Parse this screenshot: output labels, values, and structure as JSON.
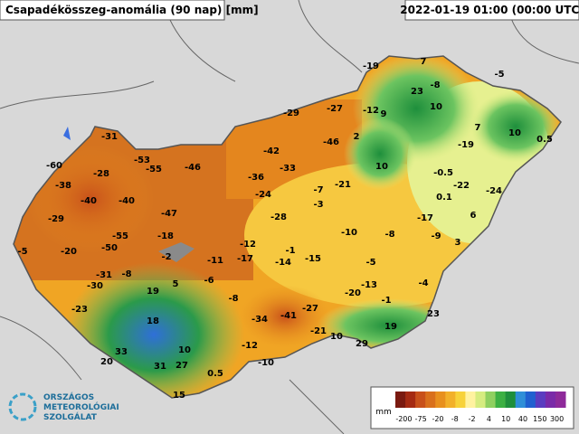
{
  "header": {
    "title": "Csapadékösszeg-anomália (90 nap) [mm]",
    "timestamp": "2022-01-19 01:00 (00:00 UTC)"
  },
  "logo": {
    "lines": [
      "ORSZÁGOS",
      "METEOROLÓGIAI",
      "SZOLGÁLAT"
    ]
  },
  "stations": {
    "values": [
      -19,
      7,
      -5,
      23,
      -8,
      10,
      -29,
      -27,
      -12,
      9,
      -31,
      -46,
      2,
      10,
      0.5,
      -19,
      7,
      -42,
      -53,
      -55,
      -46,
      -60,
      -28,
      -33,
      -36,
      10,
      -0.5,
      -38,
      -24,
      -7,
      -21,
      -22,
      -24,
      -40,
      -40,
      -3,
      0.1,
      -29,
      -47,
      -28,
      -17,
      6,
      -55,
      -18,
      -12,
      -1,
      -10,
      -8,
      -9,
      3,
      -5,
      -20,
      -50,
      -2,
      -11,
      -17,
      -14,
      -15,
      -5,
      -31,
      -8,
      -30,
      5,
      -6,
      -13,
      -4,
      19,
      -20,
      -1,
      -8,
      -23,
      -27,
      -34,
      -41,
      23,
      18,
      19,
      -21,
      10,
      33,
      10,
      29,
      -12,
      20,
      31,
      27,
      -10,
      0.5,
      15
    ]
  },
  "legend": {
    "unit": "mm",
    "ticks": [
      -200,
      -75,
      -20,
      -8,
      -2,
      4,
      10,
      40,
      150,
      300
    ],
    "colors": [
      "#7a1a10",
      "#a52a12",
      "#c8501a",
      "#d9701c",
      "#e8901e",
      "#f2b02a",
      "#f7d23a",
      "#fff2a0",
      "#d6ec80",
      "#8fd060",
      "#3cb043",
      "#1e8f3c",
      "#2f8fd8",
      "#2060d0",
      "#5a3cc0",
      "#7a2aa8",
      "#8e2a9a"
    ]
  }
}
